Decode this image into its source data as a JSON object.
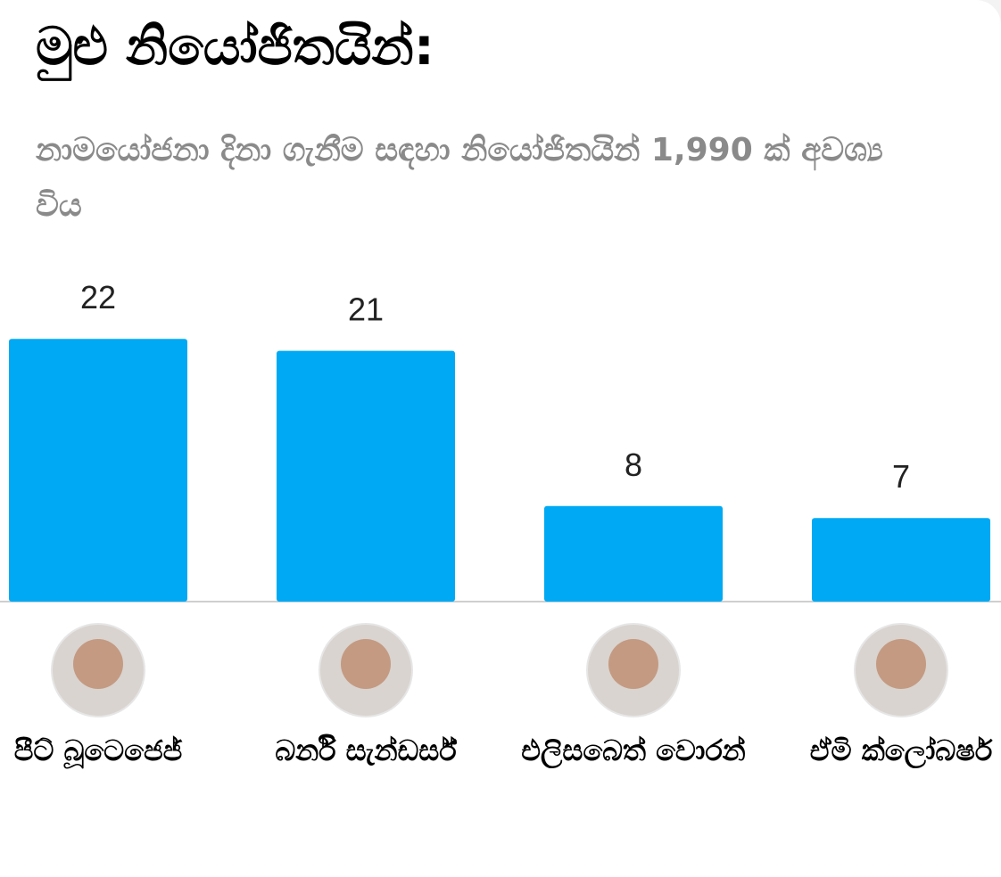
{
  "chart_data": {
    "type": "bar",
    "title": "මුළු නියෝජිතයින්:",
    "subtitle": "නාමයෝජනා දිනා ගැනීම සඳහා නියෝජිතයින් 1,990 ක් අවශ්‍ය විය",
    "categories": [
      "පීට් බූටෙජෙජ්",
      "බර්නි සැන්ඩර්ස්",
      "එලිසබෙත් වොරන්",
      "ඒමි ක්ලෝබෂර්"
    ],
    "values": [
      22,
      21,
      8,
      7
    ],
    "color": "#00a9f4"
  }
}
